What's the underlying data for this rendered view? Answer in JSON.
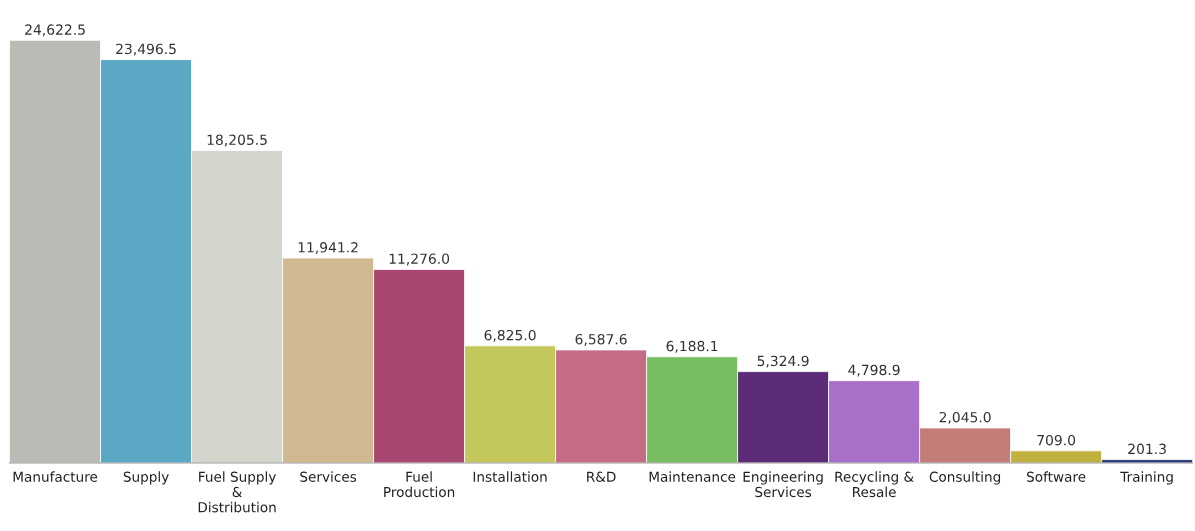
{
  "chart_data": {
    "type": "bar",
    "categories": [
      "Manufacture",
      "Supply",
      "Fuel Supply\n&\nDistribution",
      "Services",
      "Fuel\nProduction",
      "Installation",
      "R&D",
      "Maintenance",
      "Engineering\nServices",
      "Recycling &\nResale",
      "Consulting",
      "Software",
      "Training"
    ],
    "values": [
      24622.5,
      23496.5,
      18205.5,
      11941.2,
      11276.0,
      6825.0,
      6587.6,
      6188.1,
      5324.9,
      4798.9,
      2045.0,
      709.0,
      201.3
    ],
    "value_labels": [
      "24,622.5",
      "23,496.5",
      "18,205.5",
      "11,941.2",
      "11,276.0",
      "6,825.0",
      "6,587.6",
      "6,188.1",
      "5,324.9",
      "4,798.9",
      "2,045.0",
      "709.0",
      "201.3"
    ],
    "colors": [
      "#b8bcb4",
      "#5aa8c4",
      "#d4d6ce",
      "#d0b890",
      "#a84870",
      "#c4c85c",
      "#c46c84",
      "#78bc60",
      "#5c2c78",
      "#a870c8",
      "#c47c78",
      "#c0b040",
      "#2c3c78"
    ],
    "grid": false,
    "legend": false
  }
}
